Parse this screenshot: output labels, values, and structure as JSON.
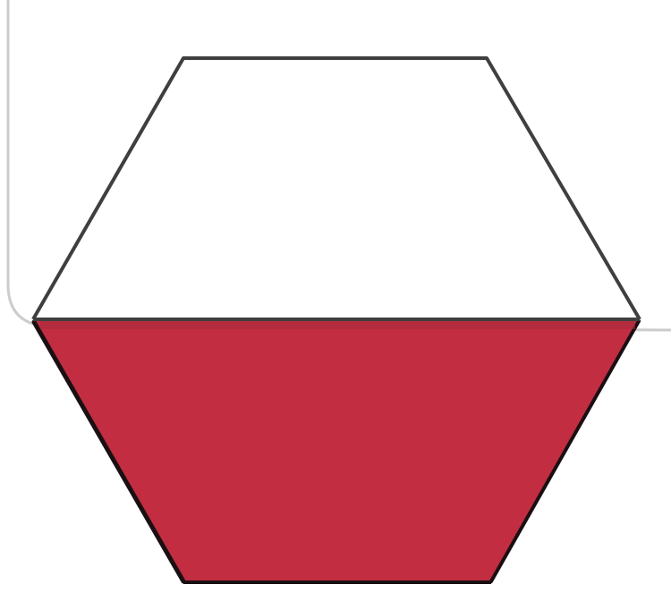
{
  "diagram": {
    "shape": "hexagon split into two trapezoids",
    "colors": {
      "background": "#ffffff",
      "panel_border": "#cccccc",
      "outline": "#3f3f3f",
      "bottom_fill": "#c22d42",
      "bottom_edge": "#1a0f12",
      "top_fill": "#ffffff"
    },
    "parts": {
      "top": "empty",
      "bottom": "filled"
    }
  }
}
